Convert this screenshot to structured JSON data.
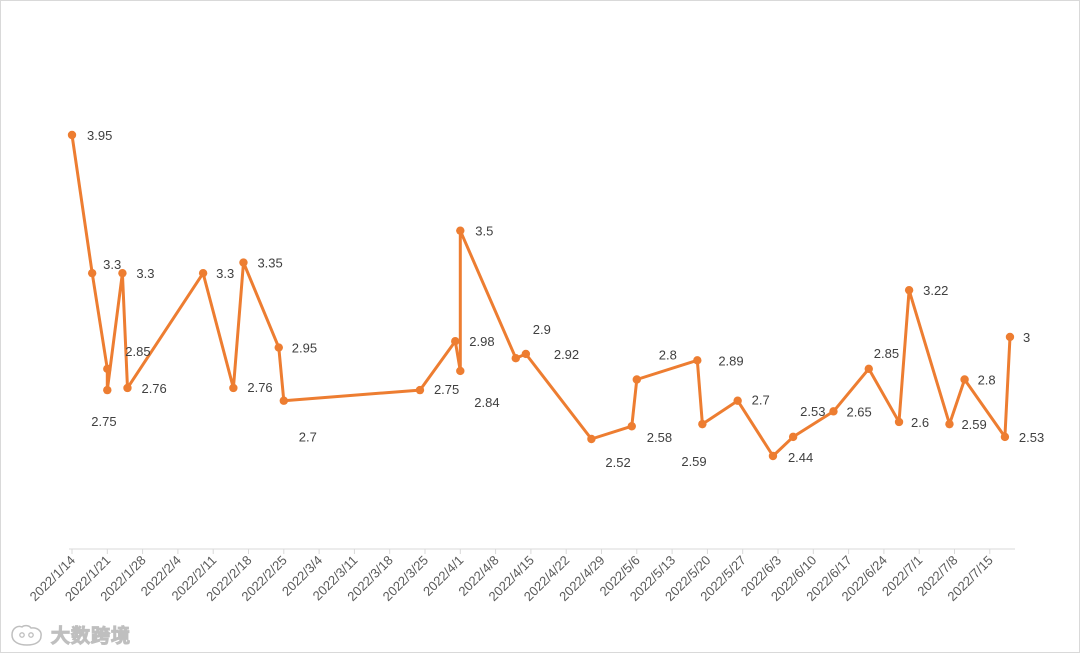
{
  "chart_data": {
    "type": "line",
    "title": "",
    "xlabel": "",
    "ylabel": "",
    "ylim": [
      1.5,
      4.3
    ],
    "grid": false,
    "legend": "none",
    "line_color": "#ED7D31",
    "x_ticks": [
      "2022/1/14",
      "2022/1/21",
      "2022/1/28",
      "2022/2/4",
      "2022/2/11",
      "2022/2/18",
      "2022/2/25",
      "2022/3/4",
      "2022/3/11",
      "2022/3/18",
      "2022/3/25",
      "2022/4/1",
      "2022/4/8",
      "2022/4/15",
      "2022/4/22",
      "2022/4/29",
      "2022/5/6",
      "2022/5/13",
      "2022/5/20",
      "2022/5/27",
      "2022/6/3",
      "2022/6/10",
      "2022/6/17",
      "2022/6/24",
      "2022/7/1",
      "2022/7/8",
      "2022/7/15"
    ],
    "series": [
      {
        "points": [
          {
            "x": "2022/1/14",
            "y": 3.95,
            "label": "3.95"
          },
          {
            "x": "2022/1/18",
            "y": 3.3,
            "label": "3.3"
          },
          {
            "x": "2022/1/21",
            "y": 2.85,
            "label": "2.85"
          },
          {
            "x": "2022/1/21",
            "y": 2.75,
            "label": "2.75"
          },
          {
            "x": "2022/1/24",
            "y": 3.3,
            "label": "3.3"
          },
          {
            "x": "2022/1/25",
            "y": 2.76,
            "label": "2.76"
          },
          {
            "x": "2022/2/9",
            "y": 3.3,
            "label": "3.3"
          },
          {
            "x": "2022/2/15",
            "y": 2.76,
            "label": "2.76"
          },
          {
            "x": "2022/2/17",
            "y": 3.35,
            "label": "3.35"
          },
          {
            "x": "2022/2/24",
            "y": 2.95,
            "label": "2.95"
          },
          {
            "x": "2022/2/25",
            "y": 2.7,
            "label": "2.7"
          },
          {
            "x": "2022/3/24",
            "y": 2.75,
            "label": "2.75"
          },
          {
            "x": "2022/3/31",
            "y": 2.98,
            "label": "2.98"
          },
          {
            "x": "2022/4/1",
            "y": 2.84,
            "label": "2.84"
          },
          {
            "x": "2022/4/1",
            "y": 3.5,
            "label": "3.5"
          },
          {
            "x": "2022/4/12",
            "y": 2.9,
            "label": "2.9"
          },
          {
            "x": "2022/4/14",
            "y": 2.92,
            "label": "2.92"
          },
          {
            "x": "2022/4/27",
            "y": 2.52,
            "label": "2.52"
          },
          {
            "x": "2022/5/5",
            "y": 2.58,
            "label": "2.58"
          },
          {
            "x": "2022/5/6",
            "y": 2.8,
            "label": "2.8"
          },
          {
            "x": "2022/5/18",
            "y": 2.89,
            "label": "2.89"
          },
          {
            "x": "2022/5/19",
            "y": 2.59,
            "label": "2.59"
          },
          {
            "x": "2022/5/26",
            "y": 2.7,
            "label": "2.7"
          },
          {
            "x": "2022/6/2",
            "y": 2.44,
            "label": "2.44"
          },
          {
            "x": "2022/6/6",
            "y": 2.53,
            "label": "2.53"
          },
          {
            "x": "2022/6/14",
            "y": 2.65,
            "label": "2.65"
          },
          {
            "x": "2022/6/21",
            "y": 2.85,
            "label": "2.85"
          },
          {
            "x": "2022/6/27",
            "y": 2.6,
            "label": "2.6"
          },
          {
            "x": "2022/6/29",
            "y": 3.22,
            "label": "3.22"
          },
          {
            "x": "2022/7/7",
            "y": 2.59,
            "label": "2.59"
          },
          {
            "x": "2022/7/10",
            "y": 2.8,
            "label": "2.8"
          },
          {
            "x": "2022/7/18",
            "y": 2.53,
            "label": "2.53"
          },
          {
            "x": "2022/7/19",
            "y": 3.0,
            "label": "3"
          }
        ]
      }
    ]
  },
  "watermark": {
    "text": "大数跨境",
    "icon": "cat-logo-icon"
  }
}
